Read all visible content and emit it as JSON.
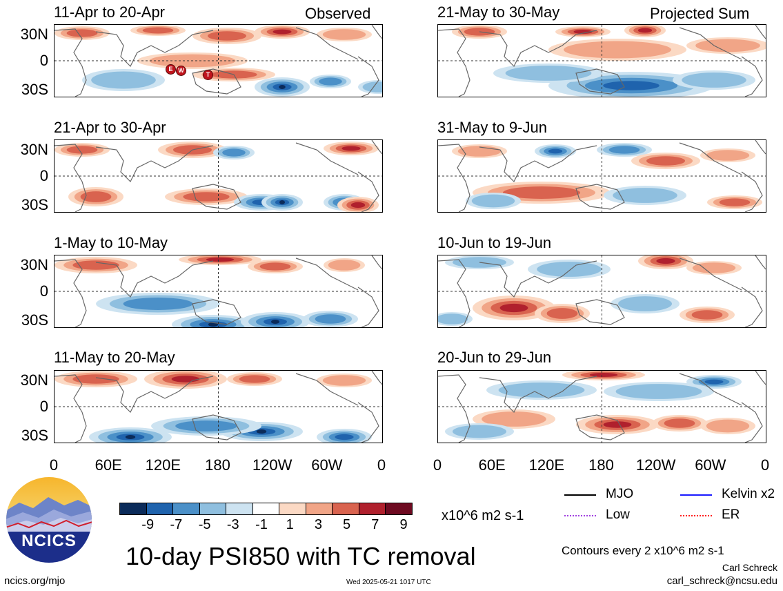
{
  "labels": {
    "observed": "Observed",
    "projected": "Projected Sum"
  },
  "panels_left": [
    {
      "title": "11-Apr to 20-Apr"
    },
    {
      "title": "21-Apr to 30-Apr"
    },
    {
      "title": "1-May to 10-May"
    },
    {
      "title": "11-May to 20-May"
    }
  ],
  "panels_right": [
    {
      "title": "21-May to 30-May"
    },
    {
      "title": "31-May to 9-Jun"
    },
    {
      "title": "10-Jun to 19-Jun"
    },
    {
      "title": "20-Jun to 29-Jun"
    }
  ],
  "lat_labels": [
    "30N",
    "0",
    "30S"
  ],
  "lon_labels": [
    "0",
    "60E",
    "120E",
    "180",
    "120W",
    "60W",
    "0"
  ],
  "tc_markers": [
    "E",
    "W",
    "T"
  ],
  "colorbar": {
    "colors": [
      "#0b2b5a",
      "#1f63ad",
      "#4b90c8",
      "#8fbfdf",
      "#cde3f1",
      "#ffffff",
      "#fbd9c4",
      "#f1a587",
      "#d9634f",
      "#b0202d",
      "#6e0a21"
    ],
    "labels": [
      "-9",
      "-7",
      "-5",
      "-3",
      "-1",
      "1",
      "3",
      "5",
      "7",
      "9"
    ],
    "units": "x10^6 m2 s-1"
  },
  "legend": [
    {
      "label": "MJO",
      "color": "#000000"
    },
    {
      "label": "Kelvin x2",
      "color": "#1a1aff"
    },
    {
      "label": "Low",
      "color": "#a040e0"
    },
    {
      "label": "ER",
      "color": "#ff2020"
    }
  ],
  "main_title": "10-day PSI850 with TC removal",
  "contours_note": "Contours every 2 x10^6 m2 s-1",
  "author": "Carl Schreck",
  "email": "carl_schreck@ncsu.edu",
  "site": "ncics.org/mjo",
  "timestamp": "Wed 2025-05-21 1017 UTC",
  "logo_text": "NCICS"
}
